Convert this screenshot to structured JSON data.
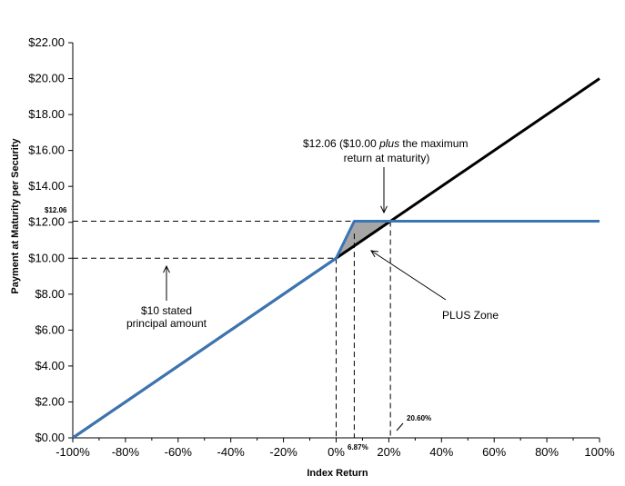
{
  "chart_data": {
    "type": "line",
    "xlabel": "Index Return",
    "ylabel": "Payment at Maturity per Security",
    "xlim": [
      -100,
      100
    ],
    "ylim": [
      0,
      22
    ],
    "x_ticks": [
      -100,
      -80,
      -60,
      -40,
      -20,
      0,
      20,
      40,
      60,
      80,
      100
    ],
    "x_tick_labels": [
      "-100%",
      "-80%",
      "-60%",
      "-40%",
      "-20%",
      "0%",
      "20%",
      "40%",
      "60%",
      "80%",
      "100%"
    ],
    "y_ticks": [
      0,
      2,
      4,
      6,
      8,
      10,
      12,
      14,
      16,
      18,
      20,
      22
    ],
    "y_tick_labels": [
      "$0.00",
      "$2.00",
      "$4.00",
      "$6.00",
      "$8.00",
      "$10.00",
      "$12.00",
      "$14.00",
      "$16.00",
      "$18.00",
      "$20.00",
      "$22.00"
    ],
    "grid": false,
    "series": [
      {
        "color": "#000000",
        "x": [
          -100,
          100
        ],
        "y": [
          0,
          20
        ]
      },
      {
        "color": "#3a75b5",
        "x": [
          -100,
          0,
          6.87,
          100
        ],
        "y": [
          0,
          10,
          12.06,
          12.06
        ]
      }
    ],
    "plus_zone": {
      "x": [
        0,
        6.87,
        20.6
      ],
      "y": [
        10,
        12.06,
        12.06
      ],
      "color": "#a6a6a6"
    },
    "reference_lines": {
      "horizontal": [
        12.06,
        10
      ],
      "vertical": [
        0,
        6.87,
        20.6
      ]
    },
    "annotations": {
      "max_payment_label": "$12.06",
      "leverage_cap_label": "6.87%",
      "cap_return_label": "20.60%",
      "max_return_line1": "$12.06 ($10.00 ",
      "max_return_italic": "plus",
      "max_return_line1_end": " the maximum",
      "max_return_line2": "return at maturity)",
      "stated_principal_line1": "$10 stated",
      "stated_principal_line2": "principal amount",
      "plus_zone_label": "PLUS Zone"
    }
  }
}
